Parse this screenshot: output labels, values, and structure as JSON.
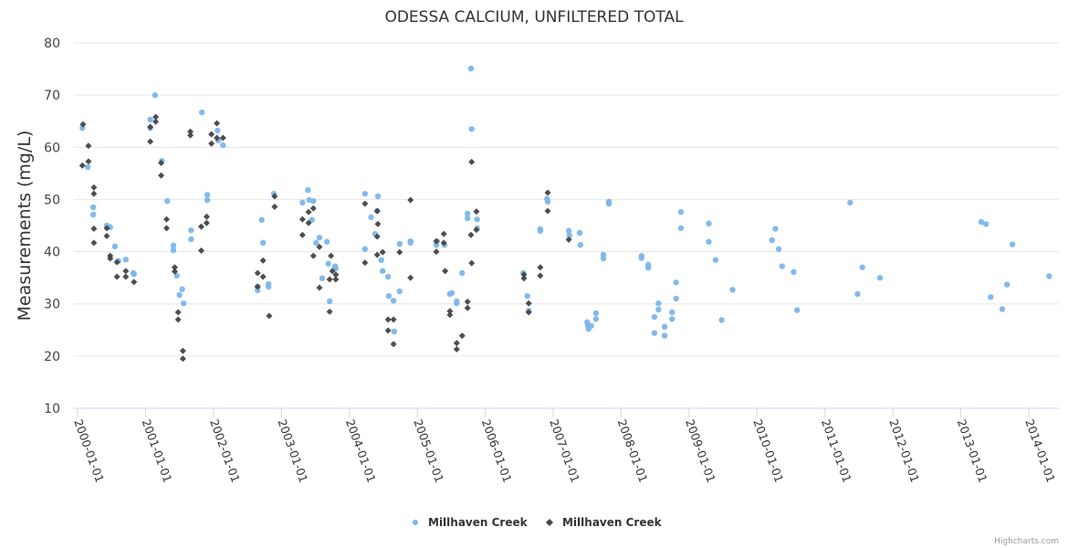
{
  "chart_data": {
    "type": "scatter",
    "title": "ODESSA CALCIUM, UNFILTERED TOTAL",
    "xlabel": "",
    "ylabel": "Measurements (mg/L)",
    "ylim": [
      10,
      80
    ],
    "yticks": [
      10,
      20,
      30,
      40,
      50,
      60,
      70,
      80
    ],
    "xlim": [
      1999.95,
      2014.45
    ],
    "xticks": [
      {
        "value": 2000,
        "label": "2000-01-01"
      },
      {
        "value": 2001,
        "label": "2001-01-01"
      },
      {
        "value": 2002,
        "label": "2002-01-01"
      },
      {
        "value": 2003,
        "label": "2003-01-01"
      },
      {
        "value": 2004,
        "label": "2004-01-01"
      },
      {
        "value": 2005,
        "label": "2005-01-01"
      },
      {
        "value": 2006,
        "label": "2006-01-01"
      },
      {
        "value": 2007,
        "label": "2007-01-01"
      },
      {
        "value": 2008,
        "label": "2008-01-01"
      },
      {
        "value": 2009,
        "label": "2009-01-01"
      },
      {
        "value": 2010,
        "label": "2010-01-01"
      },
      {
        "value": 2011,
        "label": "2011-01-01"
      },
      {
        "value": 2012,
        "label": "2012-01-01"
      },
      {
        "value": 2013,
        "label": "2013-01-01"
      },
      {
        "value": 2014,
        "label": "2014-01-01"
      }
    ],
    "grid": true,
    "legend_position": "bottom-center",
    "credits": "Highcharts.com",
    "series": [
      {
        "name": "Millhaven Creek",
        "marker": "circle",
        "color": "#7cb5ec",
        "points": [
          [
            2000.07,
            63.7
          ],
          [
            2000.15,
            56.2
          ],
          [
            2000.23,
            48.5
          ],
          [
            2000.23,
            47.1
          ],
          [
            2000.43,
            45.0
          ],
          [
            2000.48,
            44.7
          ],
          [
            2000.55,
            41.0
          ],
          [
            2000.6,
            38.2
          ],
          [
            2000.71,
            38.5
          ],
          [
            2000.82,
            35.9
          ],
          [
            2000.83,
            35.7
          ],
          [
            2001.07,
            65.3
          ],
          [
            2001.14,
            70.0
          ],
          [
            2001.07,
            63.7
          ],
          [
            2001.24,
            57.4
          ],
          [
            2001.32,
            49.7
          ],
          [
            2001.41,
            41.2
          ],
          [
            2001.41,
            40.3
          ],
          [
            2001.46,
            35.4
          ],
          [
            2001.5,
            31.7
          ],
          [
            2001.54,
            32.8
          ],
          [
            2001.56,
            30.1
          ],
          [
            2001.67,
            44.1
          ],
          [
            2001.67,
            42.4
          ],
          [
            2001.83,
            66.7
          ],
          [
            2001.91,
            50.9
          ],
          [
            2001.91,
            49.9
          ],
          [
            2002.06,
            63.2
          ],
          [
            2002.07,
            61.3
          ],
          [
            2002.14,
            60.4
          ],
          [
            2002.65,
            33.3
          ],
          [
            2002.65,
            32.6
          ],
          [
            2002.71,
            46.1
          ],
          [
            2002.73,
            41.7
          ],
          [
            2002.81,
            33.8
          ],
          [
            2002.81,
            33.3
          ],
          [
            2002.89,
            51.1
          ],
          [
            2003.31,
            49.4
          ],
          [
            2003.39,
            51.8
          ],
          [
            2003.41,
            49.9
          ],
          [
            2003.47,
            49.7
          ],
          [
            2003.45,
            46.1
          ],
          [
            2003.56,
            42.7
          ],
          [
            2003.51,
            41.7
          ],
          [
            2003.6,
            34.9
          ],
          [
            2003.67,
            41.9
          ],
          [
            2003.69,
            37.7
          ],
          [
            2003.71,
            30.5
          ],
          [
            2003.79,
            37.2
          ],
          [
            2003.8,
            36.8
          ],
          [
            2004.23,
            51.1
          ],
          [
            2004.23,
            40.5
          ],
          [
            2004.32,
            46.6
          ],
          [
            2004.38,
            43.4
          ],
          [
            2004.41,
            47.8
          ],
          [
            2004.42,
            50.6
          ],
          [
            2004.47,
            38.4
          ],
          [
            2004.49,
            36.3
          ],
          [
            2004.57,
            35.2
          ],
          [
            2004.58,
            31.5
          ],
          [
            2004.65,
            30.6
          ],
          [
            2004.74,
            41.5
          ],
          [
            2004.74,
            32.4
          ],
          [
            2004.66,
            24.7
          ],
          [
            2004.9,
            41.7
          ],
          [
            2004.9,
            42.0
          ],
          [
            2005.29,
            42.0
          ],
          [
            2005.28,
            41.3
          ],
          [
            2005.4,
            41.3
          ],
          [
            2005.48,
            31.9
          ],
          [
            2005.51,
            32.1
          ],
          [
            2005.58,
            30.1
          ],
          [
            2005.58,
            30.5
          ],
          [
            2005.66,
            35.9
          ],
          [
            2005.74,
            47.3
          ],
          [
            2005.74,
            46.4
          ],
          [
            2005.79,
            75.1
          ],
          [
            2005.8,
            63.5
          ],
          [
            2005.88,
            46.2
          ],
          [
            2005.88,
            44.5
          ],
          [
            2006.56,
            35.9
          ],
          [
            2006.62,
            31.5
          ],
          [
            2006.64,
            28.7
          ],
          [
            2006.81,
            44.3
          ],
          [
            2006.81,
            44.0
          ],
          [
            2006.91,
            50.1
          ],
          [
            2006.92,
            49.6
          ],
          [
            2007.23,
            44.0
          ],
          [
            2007.24,
            43.1
          ],
          [
            2007.39,
            43.6
          ],
          [
            2007.4,
            41.3
          ],
          [
            2007.5,
            26.5
          ],
          [
            2007.51,
            25.9
          ],
          [
            2007.52,
            25.2
          ],
          [
            2007.56,
            25.8
          ],
          [
            2007.63,
            28.2
          ],
          [
            2007.63,
            27.1
          ],
          [
            2007.74,
            39.4
          ],
          [
            2007.74,
            38.7
          ],
          [
            2007.82,
            49.6
          ],
          [
            2007.82,
            49.2
          ],
          [
            2008.3,
            39.2
          ],
          [
            2008.3,
            38.8
          ],
          [
            2008.4,
            37.5
          ],
          [
            2008.4,
            36.9
          ],
          [
            2008.55,
            30.1
          ],
          [
            2008.55,
            28.9
          ],
          [
            2008.49,
            27.5
          ],
          [
            2008.49,
            24.4
          ],
          [
            2008.64,
            25.6
          ],
          [
            2008.64,
            23.9
          ],
          [
            2008.75,
            28.4
          ],
          [
            2008.75,
            27.1
          ],
          [
            2008.81,
            34.1
          ],
          [
            2008.81,
            31.0
          ],
          [
            2008.88,
            47.6
          ],
          [
            2008.88,
            44.5
          ],
          [
            2009.29,
            45.4
          ],
          [
            2009.29,
            41.9
          ],
          [
            2009.39,
            38.4
          ],
          [
            2009.48,
            26.9
          ],
          [
            2009.64,
            32.7
          ],
          [
            2010.22,
            42.2
          ],
          [
            2010.27,
            44.4
          ],
          [
            2010.32,
            40.5
          ],
          [
            2010.37,
            37.2
          ],
          [
            2010.54,
            36.1
          ],
          [
            2010.59,
            28.8
          ],
          [
            2011.37,
            49.4
          ],
          [
            2011.48,
            31.9
          ],
          [
            2011.55,
            37.0
          ],
          [
            2011.81,
            35.0
          ],
          [
            2013.3,
            45.7
          ],
          [
            2013.37,
            45.3
          ],
          [
            2013.44,
            31.3
          ],
          [
            2013.61,
            29.0
          ],
          [
            2013.68,
            33.7
          ],
          [
            2013.76,
            41.4
          ],
          [
            2014.3,
            35.3
          ]
        ]
      },
      {
        "name": "Millhaven Creek",
        "marker": "diamond",
        "color": "#434348",
        "points": [
          [
            2000.08,
            64.4
          ],
          [
            2000.07,
            56.5
          ],
          [
            2000.16,
            60.3
          ],
          [
            2000.16,
            57.3
          ],
          [
            2000.24,
            52.3
          ],
          [
            2000.24,
            51.1
          ],
          [
            2000.24,
            44.4
          ],
          [
            2000.24,
            41.7
          ],
          [
            2000.43,
            43.0
          ],
          [
            2000.43,
            44.5
          ],
          [
            2000.48,
            39.2
          ],
          [
            2000.48,
            38.7
          ],
          [
            2000.58,
            38.0
          ],
          [
            2000.58,
            35.2
          ],
          [
            2000.71,
            36.3
          ],
          [
            2000.71,
            35.2
          ],
          [
            2000.83,
            34.2
          ],
          [
            2001.07,
            63.9
          ],
          [
            2001.07,
            61.1
          ],
          [
            2001.15,
            65.8
          ],
          [
            2001.15,
            64.9
          ],
          [
            2001.23,
            57.0
          ],
          [
            2001.23,
            54.6
          ],
          [
            2001.31,
            46.2
          ],
          [
            2001.31,
            44.5
          ],
          [
            2001.43,
            37.0
          ],
          [
            2001.43,
            36.2
          ],
          [
            2001.48,
            28.4
          ],
          [
            2001.48,
            27.0
          ],
          [
            2001.55,
            21.0
          ],
          [
            2001.55,
            19.5
          ],
          [
            2001.66,
            63.0
          ],
          [
            2001.66,
            62.3
          ],
          [
            2001.82,
            44.8
          ],
          [
            2001.82,
            40.2
          ],
          [
            2001.97,
            62.5
          ],
          [
            2001.97,
            60.7
          ],
          [
            2001.9,
            46.7
          ],
          [
            2001.9,
            45.5
          ],
          [
            2002.05,
            64.6
          ],
          [
            2002.05,
            61.8
          ],
          [
            2002.14,
            61.8
          ],
          [
            2002.9,
            50.6
          ],
          [
            2002.9,
            48.6
          ],
          [
            2002.73,
            38.3
          ],
          [
            2002.65,
            35.9
          ],
          [
            2002.73,
            35.2
          ],
          [
            2002.65,
            33.3
          ],
          [
            2002.82,
            27.7
          ],
          [
            2003.31,
            46.2
          ],
          [
            2003.31,
            43.2
          ],
          [
            2003.4,
            47.6
          ],
          [
            2003.47,
            48.3
          ],
          [
            2003.4,
            45.5
          ],
          [
            2003.47,
            39.2
          ],
          [
            2003.56,
            40.9
          ],
          [
            2003.73,
            39.2
          ],
          [
            2003.75,
            36.3
          ],
          [
            2003.8,
            35.6
          ],
          [
            2003.56,
            33.1
          ],
          [
            2003.71,
            34.7
          ],
          [
            2003.8,
            34.7
          ],
          [
            2003.71,
            28.5
          ],
          [
            2004.23,
            49.2
          ],
          [
            2004.41,
            47.8
          ],
          [
            2004.41,
            42.9
          ],
          [
            2004.42,
            45.3
          ],
          [
            2004.23,
            37.9
          ],
          [
            2004.41,
            39.4
          ],
          [
            2004.49,
            39.9
          ],
          [
            2004.74,
            39.9
          ],
          [
            2004.9,
            49.9
          ],
          [
            2004.9,
            35.0
          ],
          [
            2004.57,
            27.0
          ],
          [
            2004.65,
            27.0
          ],
          [
            2004.57,
            24.9
          ],
          [
            2004.65,
            22.3
          ],
          [
            2005.28,
            42.0
          ],
          [
            2005.39,
            43.4
          ],
          [
            2005.39,
            41.7
          ],
          [
            2005.28,
            40.0
          ],
          [
            2005.41,
            36.3
          ],
          [
            2005.8,
            57.2
          ],
          [
            2005.87,
            47.7
          ],
          [
            2005.87,
            44.2
          ],
          [
            2005.79,
            43.2
          ],
          [
            2005.8,
            37.8
          ],
          [
            2005.74,
            30.4
          ],
          [
            2005.74,
            29.2
          ],
          [
            2005.48,
            28.6
          ],
          [
            2005.48,
            27.9
          ],
          [
            2005.66,
            23.9
          ],
          [
            2005.58,
            22.5
          ],
          [
            2005.58,
            21.3
          ],
          [
            2006.92,
            51.3
          ],
          [
            2006.92,
            47.8
          ],
          [
            2006.57,
            35.6
          ],
          [
            2006.57,
            34.9
          ],
          [
            2006.81,
            37.0
          ],
          [
            2006.81,
            35.4
          ],
          [
            2006.64,
            30.1
          ],
          [
            2006.64,
            28.4
          ],
          [
            2007.23,
            42.3
          ]
        ]
      }
    ]
  }
}
